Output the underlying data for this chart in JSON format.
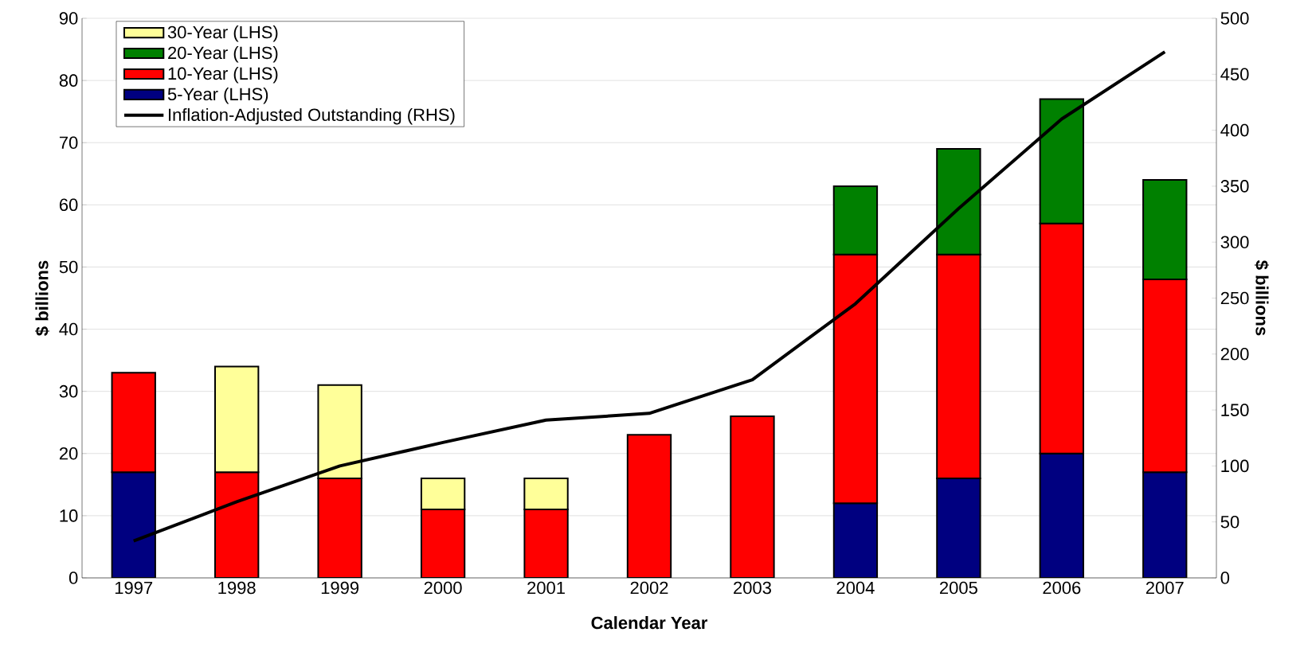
{
  "chart_data": {
    "type": "bar",
    "stacked": true,
    "xlabel": "Calendar Year",
    "ylabel": "$ billions",
    "y2label": "$ billions",
    "categories": [
      "1997",
      "1998",
      "1999",
      "2000",
      "2001",
      "2002",
      "2003",
      "2004",
      "2005",
      "2006",
      "2007"
    ],
    "series": [
      {
        "name": "5-Year (LHS)",
        "color": "#000080",
        "values": [
          17,
          null,
          null,
          null,
          null,
          null,
          null,
          12,
          16,
          20,
          17
        ]
      },
      {
        "name": "10-Year (LHS)",
        "color": "#ff0000",
        "values": [
          16,
          17,
          16,
          11,
          11,
          23,
          26,
          40,
          36,
          37,
          31
        ]
      },
      {
        "name": "20-Year (LHS)",
        "color": "#008000",
        "values": [
          null,
          null,
          null,
          null,
          null,
          null,
          null,
          11,
          17,
          20,
          16
        ]
      },
      {
        "name": "30-Year (LHS)",
        "color": "#ffff99",
        "values": [
          null,
          17,
          15,
          5,
          5,
          null,
          null,
          null,
          null,
          null,
          null
        ]
      },
      {
        "name": "Inflation-Adjusted Outstanding (RHS)",
        "type": "line",
        "axis": "y2",
        "color": "#000000",
        "line_style": "solid",
        "marker": "none",
        "values": [
          33,
          68,
          100,
          121,
          141,
          147,
          177,
          245,
          330,
          410,
          470
        ]
      }
    ],
    "ylim": [
      0,
      90
    ],
    "yticks": [
      0,
      10,
      20,
      30,
      40,
      50,
      60,
      70,
      80,
      90
    ],
    "y2lim": [
      0,
      500
    ],
    "y2ticks": [
      0,
      50,
      100,
      150,
      200,
      250,
      300,
      350,
      400,
      450,
      500
    ],
    "grid": "y",
    "legend": "top left"
  }
}
